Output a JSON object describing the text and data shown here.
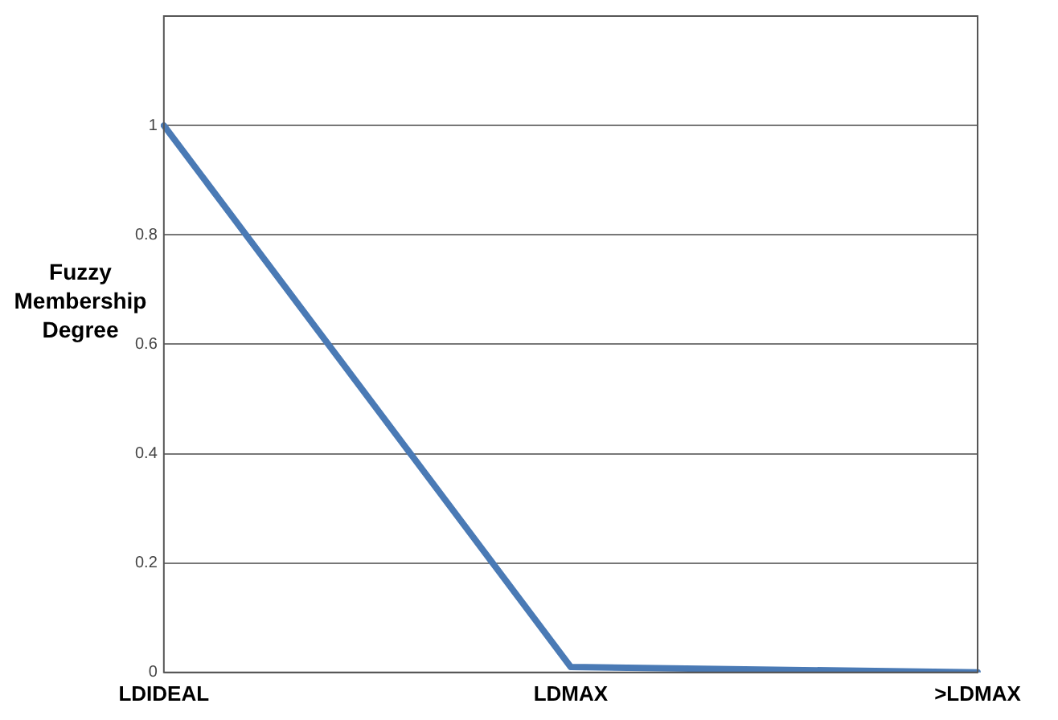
{
  "chart_data": {
    "type": "line",
    "ylabel": "Fuzzy Membership Degree",
    "categories": [
      "LDIDEAL",
      "LDMAX",
      ">LDMAX"
    ],
    "series": [
      {
        "color": "#4a7ab5",
        "values": [
          1,
          0.01,
          0
        ]
      }
    ],
    "ylim": [
      0,
      1.2
    ],
    "yticks": [
      0,
      0.2,
      0.4,
      0.6,
      0.8,
      1
    ],
    "grid": "y",
    "legend": false,
    "marker": "none",
    "line_style": "solid"
  }
}
